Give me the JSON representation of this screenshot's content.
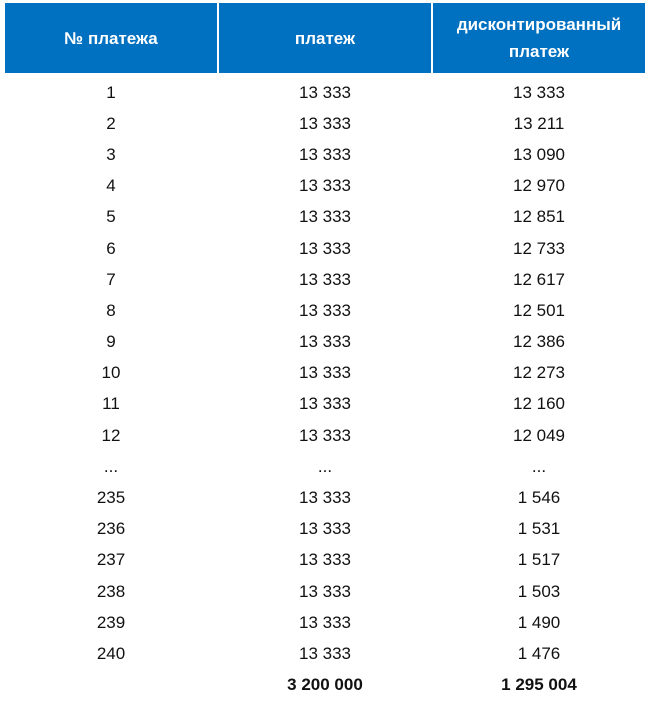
{
  "header": {
    "col1": "№ платежа",
    "col2": "платеж",
    "col3": "дисконтированный платеж"
  },
  "colors": {
    "header_bg": "#0070C0",
    "header_text": "#FFFFFF"
  },
  "rows": [
    [
      "1",
      "13 333",
      "13 333"
    ],
    [
      "2",
      "13 333",
      "13 211"
    ],
    [
      "3",
      "13 333",
      "13 090"
    ],
    [
      "4",
      "13 333",
      "12 970"
    ],
    [
      "5",
      "13 333",
      "12 851"
    ],
    [
      "6",
      "13 333",
      "12 733"
    ],
    [
      "7",
      "13 333",
      "12 617"
    ],
    [
      "8",
      "13 333",
      "12 501"
    ],
    [
      "9",
      "13 333",
      "12 386"
    ],
    [
      "10",
      "13 333",
      "12 273"
    ],
    [
      "11",
      "13 333",
      "12 160"
    ],
    [
      "12",
      "13 333",
      "12 049"
    ],
    [
      "...",
      "...",
      "..."
    ],
    [
      "235",
      "13 333",
      "1 546"
    ],
    [
      "236",
      "13 333",
      "1 531"
    ],
    [
      "237",
      "13 333",
      "1 517"
    ],
    [
      "238",
      "13 333",
      "1 503"
    ],
    [
      "239",
      "13 333",
      "1 490"
    ],
    [
      "240",
      "13 333",
      "1 476"
    ]
  ],
  "total": {
    "label": "",
    "payment": "3 200 000",
    "discounted": "1 295 004"
  }
}
